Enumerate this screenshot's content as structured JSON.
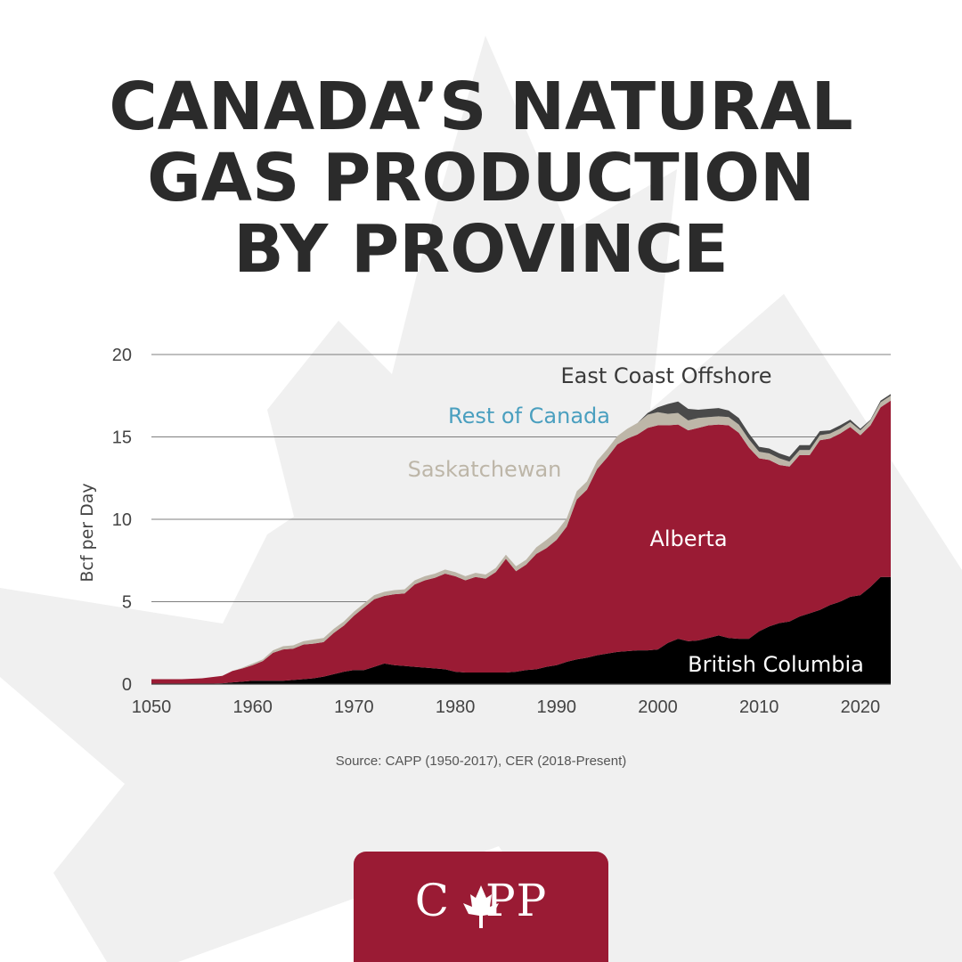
{
  "title_lines": [
    "CANADA’S NATURAL",
    "GAS PRODUCTION",
    "BY PROVINCE"
  ],
  "source": "Source: CAPP (1950-2017), CER (2018-Present)",
  "logo": {
    "left": "C",
    "right": "PP"
  },
  "colors": {
    "background_leaf": "#f0f0f0",
    "logo_bg": "#9a1b34",
    "british_columbia": "#000000",
    "alberta": "#9a1b34",
    "saskatchewan": "#bdb6a8",
    "rest_of_canada": "#4a9fbf",
    "east_coast_offshore": "#4a4a4a",
    "grid": "#555555"
  },
  "chart_data": {
    "type": "area",
    "stacked": true,
    "ylabel": "Bcf per Day",
    "ylim": [
      0,
      20
    ],
    "yticks": [
      "0",
      "5",
      "10",
      "15",
      "20"
    ],
    "xticks": [
      "1050",
      "1960",
      "1970",
      "1980",
      "1990",
      "2000",
      "2010",
      "2020"
    ],
    "x": [
      1950,
      1953,
      1955,
      1957,
      1958,
      1959,
      1960,
      1961,
      1962,
      1963,
      1964,
      1965,
      1966,
      1967,
      1968,
      1969,
      1970,
      1971,
      1972,
      1973,
      1974,
      1975,
      1976,
      1977,
      1978,
      1979,
      1980,
      1981,
      1982,
      1983,
      1984,
      1985,
      1986,
      1987,
      1988,
      1989,
      1990,
      1991,
      1992,
      1993,
      1994,
      1995,
      1996,
      1997,
      1998,
      1999,
      2000,
      2001,
      2002,
      2003,
      2004,
      2005,
      2006,
      2007,
      2008,
      2009,
      2010,
      2011,
      2012,
      2013,
      2014,
      2015,
      2016,
      2017,
      2018,
      2019,
      2020,
      2021,
      2022,
      2023
    ],
    "series": [
      {
        "name": "British Columbia",
        "values": [
          0.0,
          0.0,
          0.0,
          0.05,
          0.1,
          0.15,
          0.2,
          0.2,
          0.2,
          0.2,
          0.25,
          0.3,
          0.35,
          0.45,
          0.6,
          0.75,
          0.85,
          0.85,
          1.05,
          1.25,
          1.15,
          1.1,
          1.05,
          1.0,
          0.95,
          0.9,
          0.75,
          0.7,
          0.7,
          0.7,
          0.7,
          0.7,
          0.75,
          0.85,
          0.9,
          1.05,
          1.15,
          1.35,
          1.5,
          1.6,
          1.75,
          1.85,
          1.95,
          2.0,
          2.05,
          2.05,
          2.1,
          2.5,
          2.75,
          2.6,
          2.65,
          2.8,
          2.95,
          2.8,
          2.75,
          2.75,
          3.2,
          3.5,
          3.7,
          3.8,
          4.1,
          4.3,
          4.5,
          4.8,
          5.0,
          5.3,
          5.4,
          5.9,
          6.5,
          6.5
        ]
      },
      {
        "name": "Alberta",
        "values": [
          0.3,
          0.3,
          0.35,
          0.45,
          0.7,
          0.8,
          0.95,
          1.2,
          1.7,
          1.9,
          1.9,
          2.1,
          2.1,
          2.1,
          2.5,
          2.8,
          3.3,
          3.8,
          4.1,
          4.1,
          4.3,
          4.4,
          5.0,
          5.3,
          5.5,
          5.8,
          5.8,
          5.6,
          5.8,
          5.7,
          6.1,
          6.9,
          6.1,
          6.4,
          7.0,
          7.2,
          7.6,
          8.2,
          9.7,
          10.2,
          11.3,
          11.9,
          12.6,
          12.9,
          13.1,
          13.5,
          13.6,
          13.2,
          13.0,
          12.8,
          12.9,
          12.9,
          12.8,
          12.9,
          12.5,
          11.6,
          10.5,
          10.1,
          9.6,
          9.4,
          9.8,
          9.6,
          10.3,
          10.1,
          10.2,
          10.3,
          9.7,
          9.8,
          10.3,
          10.7
        ]
      },
      {
        "name": "Saskatchewan",
        "values": [
          0.0,
          0.0,
          0.0,
          0.0,
          0.0,
          0.05,
          0.1,
          0.1,
          0.15,
          0.2,
          0.2,
          0.2,
          0.25,
          0.25,
          0.25,
          0.25,
          0.25,
          0.25,
          0.25,
          0.25,
          0.25,
          0.25,
          0.25,
          0.25,
          0.25,
          0.25,
          0.25,
          0.25,
          0.25,
          0.25,
          0.25,
          0.25,
          0.3,
          0.3,
          0.4,
          0.5,
          0.5,
          0.5,
          0.5,
          0.5,
          0.5,
          0.5,
          0.5,
          0.6,
          0.7,
          0.8,
          0.8,
          0.7,
          0.7,
          0.6,
          0.6,
          0.5,
          0.5,
          0.5,
          0.5,
          0.5,
          0.4,
          0.4,
          0.4,
          0.3,
          0.3,
          0.3,
          0.3,
          0.3,
          0.3,
          0.3,
          0.3,
          0.3,
          0.3,
          0.3
        ]
      },
      {
        "name": "Rest of Canada",
        "values": [
          0.0,
          0.0,
          0.0,
          0.0,
          0.0,
          0.0,
          0.0,
          0.0,
          0.0,
          0.0,
          0.0,
          0.0,
          0.0,
          0.0,
          0.0,
          0.0,
          0.0,
          0.0,
          0.0,
          0.0,
          0.0,
          0.0,
          0.0,
          0.0,
          0.0,
          0.0,
          0.0,
          0.0,
          0.0,
          0.0,
          0.0,
          0.0,
          0.0,
          0.0,
          0.0,
          0.0,
          0.0,
          0.0,
          0.0,
          0.0,
          0.0,
          0.0,
          0.0,
          0.0,
          0.0,
          0.0,
          0.0,
          0.0,
          0.0,
          0.0,
          0.0,
          0.0,
          0.0,
          0.0,
          0.0,
          0.0,
          0.0,
          0.0,
          0.0,
          0.0,
          0.0,
          0.0,
          0.0,
          0.0,
          0.0,
          0.0,
          0.0,
          0.0,
          0.0,
          0.0
        ]
      },
      {
        "name": "East Coast Offshore",
        "values": [
          0.0,
          0.0,
          0.0,
          0.0,
          0.0,
          0.0,
          0.0,
          0.0,
          0.0,
          0.0,
          0.0,
          0.0,
          0.0,
          0.0,
          0.0,
          0.0,
          0.0,
          0.0,
          0.0,
          0.0,
          0.0,
          0.0,
          0.0,
          0.0,
          0.0,
          0.0,
          0.0,
          0.0,
          0.0,
          0.0,
          0.0,
          0.0,
          0.0,
          0.0,
          0.0,
          0.0,
          0.0,
          0.0,
          0.0,
          0.0,
          0.0,
          0.0,
          0.0,
          0.0,
          0.0,
          0.1,
          0.3,
          0.6,
          0.7,
          0.7,
          0.5,
          0.5,
          0.5,
          0.4,
          0.4,
          0.35,
          0.3,
          0.3,
          0.3,
          0.3,
          0.3,
          0.3,
          0.25,
          0.2,
          0.2,
          0.15,
          0.1,
          0.05,
          0.1,
          0.1
        ]
      }
    ]
  }
}
